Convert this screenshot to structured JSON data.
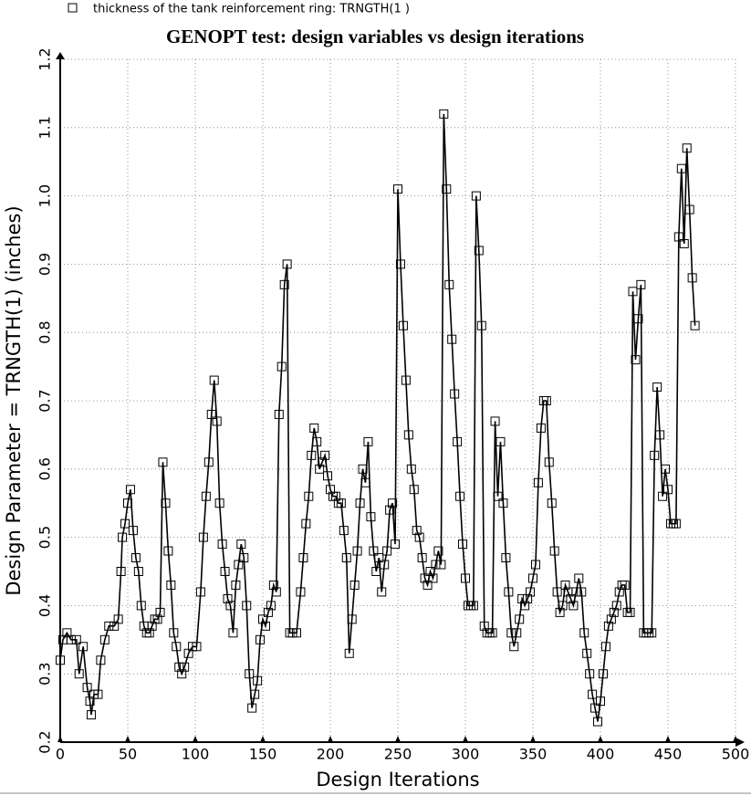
{
  "chart_data": {
    "type": "line",
    "title": "GENOPT test: design variables vs design iterations",
    "xlabel": "Design Iterations",
    "ylabel": "Design Parameter = TRNGTH(1) (inches)",
    "xlim": [
      0,
      500
    ],
    "xticks": [
      0,
      50,
      100,
      150,
      200,
      250,
      300,
      350,
      400,
      450,
      500
    ],
    "ylim": [
      0.2,
      1.2
    ],
    "yticks": [
      0.2,
      0.3,
      0.4,
      0.5,
      0.6,
      0.7,
      0.8,
      0.9,
      {
        "value": 1,
        "label": "1.0"
      },
      1.1,
      1.2
    ],
    "grid": true,
    "legend": "top-left",
    "marker": "square",
    "x": [
      0,
      2,
      5,
      8,
      12,
      14,
      17,
      20,
      22,
      23,
      25,
      28,
      30,
      33,
      36,
      40,
      43,
      45,
      46,
      48,
      50,
      52,
      54,
      56,
      58,
      60,
      62,
      64,
      66,
      68,
      70,
      72,
      74,
      76,
      78,
      80,
      82,
      84,
      86,
      88,
      90,
      92,
      95,
      98,
      101,
      104,
      106,
      108,
      110,
      112,
      114,
      116,
      118,
      120,
      122,
      124,
      126,
      128,
      130,
      132,
      134,
      136,
      138,
      140,
      142,
      144,
      146,
      148,
      150,
      152,
      154,
      156,
      158,
      160,
      162,
      164,
      166,
      168,
      170,
      172,
      175,
      178,
      180,
      182,
      184,
      186,
      188,
      190,
      192,
      194,
      196,
      198,
      200,
      202,
      204,
      206,
      208,
      210,
      212,
      214,
      216,
      218,
      220,
      222,
      224,
      226,
      228,
      230,
      232,
      234,
      236,
      238,
      240,
      242,
      244,
      246,
      248,
      250,
      252,
      254,
      256,
      258,
      260,
      262,
      264,
      266,
      268,
      270,
      272,
      274,
      276,
      278,
      280,
      282,
      284,
      286,
      288,
      290,
      292,
      294,
      296,
      298,
      300,
      302,
      304,
      306,
      308,
      310,
      312,
      314,
      316,
      318,
      320,
      322,
      324,
      326,
      328,
      330,
      332,
      334,
      336,
      338,
      340,
      342,
      344,
      346,
      348,
      350,
      352,
      354,
      356,
      358,
      360,
      362,
      364,
      366,
      368,
      370,
      372,
      374,
      376,
      378,
      380,
      382,
      384,
      386,
      388,
      390,
      392,
      394,
      396,
      398,
      400,
      402,
      404,
      406,
      408,
      410,
      412,
      414,
      416,
      418,
      420,
      422,
      424,
      426,
      428,
      430,
      432,
      434,
      436,
      438,
      440,
      442,
      444,
      446,
      448,
      450,
      452,
      454,
      456,
      458,
      460,
      462,
      464,
      466,
      468,
      470
    ],
    "series": [
      {
        "name": "thickness of the tank reinforcement ring: TRNGTH(1 )",
        "color": "#000000",
        "values": [
          0.32,
          0.35,
          0.36,
          0.35,
          0.35,
          0.3,
          0.34,
          0.28,
          0.26,
          0.24,
          0.27,
          0.27,
          0.32,
          0.35,
          0.37,
          0.37,
          0.38,
          0.45,
          0.5,
          0.52,
          0.55,
          0.57,
          0.51,
          0.47,
          0.45,
          0.4,
          0.37,
          0.36,
          0.36,
          0.37,
          0.38,
          0.38,
          0.39,
          0.61,
          0.55,
          0.48,
          0.43,
          0.36,
          0.34,
          0.31,
          0.3,
          0.31,
          0.33,
          0.34,
          0.34,
          0.42,
          0.5,
          0.56,
          0.61,
          0.68,
          0.73,
          0.67,
          0.55,
          0.49,
          0.45,
          0.41,
          0.4,
          0.36,
          0.43,
          0.46,
          0.49,
          0.47,
          0.4,
          0.3,
          0.25,
          0.27,
          0.29,
          0.35,
          0.38,
          0.37,
          0.39,
          0.4,
          0.43,
          0.42,
          0.68,
          0.75,
          0.87,
          0.9,
          0.36,
          0.36,
          0.36,
          0.42,
          0.47,
          0.52,
          0.56,
          0.62,
          0.66,
          0.64,
          0.6,
          0.61,
          0.62,
          0.59,
          0.57,
          0.56,
          0.56,
          0.55,
          0.55,
          0.51,
          0.47,
          0.33,
          0.38,
          0.43,
          0.48,
          0.55,
          0.6,
          0.58,
          0.64,
          0.53,
          0.48,
          0.45,
          0.47,
          0.42,
          0.46,
          0.48,
          0.54,
          0.55,
          0.49,
          1.01,
          0.9,
          0.81,
          0.73,
          0.65,
          0.6,
          0.57,
          0.51,
          0.5,
          0.47,
          0.44,
          0.43,
          0.45,
          0.44,
          0.46,
          0.48,
          0.46,
          1.12,
          1.01,
          0.87,
          0.79,
          0.71,
          0.64,
          0.56,
          0.49,
          0.44,
          0.4,
          0.4,
          0.4,
          1.0,
          0.92,
          0.81,
          0.37,
          0.36,
          0.36,
          0.36,
          0.67,
          0.56,
          0.64,
          0.55,
          0.47,
          0.42,
          0.36,
          0.34,
          0.36,
          0.38,
          0.41,
          0.4,
          0.41,
          0.42,
          0.44,
          0.46,
          0.58,
          0.66,
          0.7,
          0.7,
          0.61,
          0.55,
          0.48,
          0.42,
          0.39,
          0.4,
          0.43,
          0.42,
          0.41,
          0.4,
          0.42,
          0.44,
          0.42,
          0.36,
          0.33,
          0.3,
          0.27,
          0.25,
          0.23,
          0.26,
          0.3,
          0.34,
          0.37,
          0.38,
          0.39,
          0.4,
          0.42,
          0.43,
          0.43,
          0.39,
          0.39,
          0.86,
          0.76,
          0.82,
          0.87,
          0.36,
          0.36,
          0.36,
          0.36,
          0.62,
          0.72,
          0.65,
          0.56,
          0.6,
          0.57,
          0.52,
          0.52,
          0.52,
          0.94,
          1.04,
          0.93,
          1.07,
          0.98,
          0.88,
          0.81
        ]
      }
    ]
  }
}
